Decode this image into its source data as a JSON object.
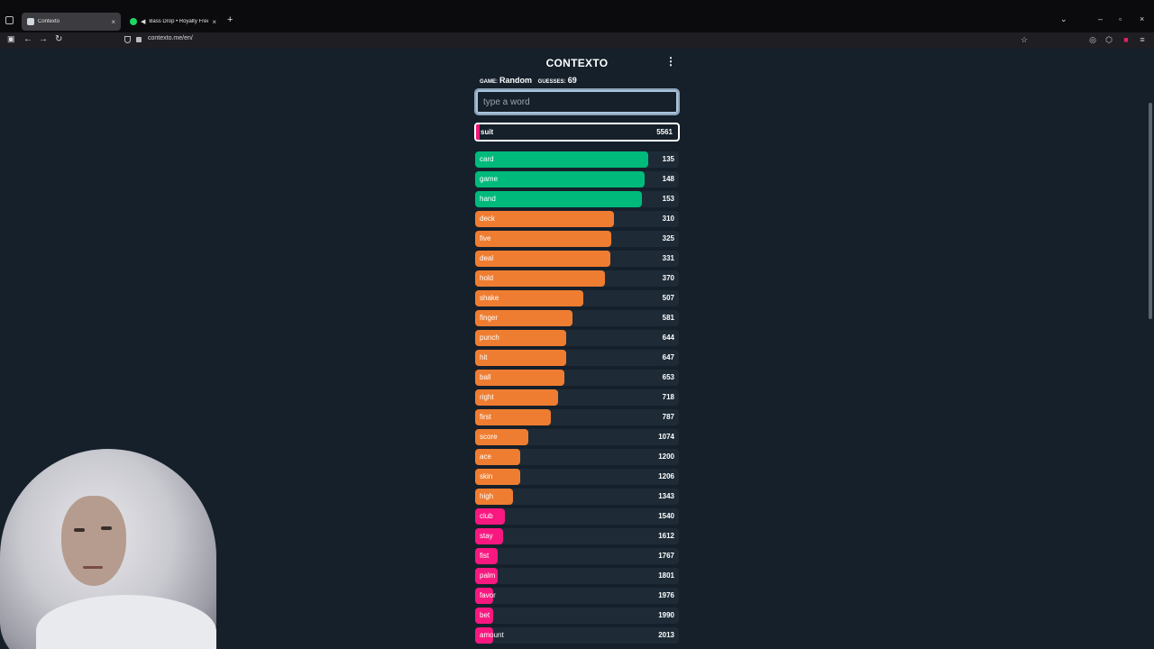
{
  "browser": {
    "tabs": [
      {
        "title": "Contexto",
        "active": true
      },
      {
        "title": "Bass Drop • Royalty Free M",
        "active": false
      }
    ],
    "url": "contexto.me/en/"
  },
  "app": {
    "title": "CONTEXTO",
    "game_label": "GAME:",
    "game_value": "Random",
    "guesses_label": "GUESSES:",
    "guesses_value": "69",
    "input_placeholder": "type a word"
  },
  "current_guess": {
    "word": "suit",
    "rank": "5561"
  },
  "colors": {
    "green": "#00ba7c",
    "orange": "#ef7d31",
    "pink": "#f91880"
  },
  "guesses": [
    {
      "word": "card",
      "rank": 135,
      "color": "green",
      "fill": 0.85
    },
    {
      "word": "game",
      "rank": 148,
      "color": "green",
      "fill": 0.83
    },
    {
      "word": "hand",
      "rank": 153,
      "color": "green",
      "fill": 0.82
    },
    {
      "word": "deck",
      "rank": 310,
      "color": "orange",
      "fill": 0.68
    },
    {
      "word": "five",
      "rank": 325,
      "color": "orange",
      "fill": 0.67
    },
    {
      "word": "deal",
      "rank": 331,
      "color": "orange",
      "fill": 0.665
    },
    {
      "word": "hold",
      "rank": 370,
      "color": "orange",
      "fill": 0.635
    },
    {
      "word": "shake",
      "rank": 507,
      "color": "orange",
      "fill": 0.53
    },
    {
      "word": "finger",
      "rank": 581,
      "color": "orange",
      "fill": 0.48
    },
    {
      "word": "punch",
      "rank": 644,
      "color": "orange",
      "fill": 0.445
    },
    {
      "word": "hit",
      "rank": 647,
      "color": "orange",
      "fill": 0.445
    },
    {
      "word": "ball",
      "rank": 653,
      "color": "orange",
      "fill": 0.44
    },
    {
      "word": "right",
      "rank": 718,
      "color": "orange",
      "fill": 0.405
    },
    {
      "word": "first",
      "rank": 787,
      "color": "orange",
      "fill": 0.37
    },
    {
      "word": "score",
      "rank": 1074,
      "color": "orange",
      "fill": 0.26
    },
    {
      "word": "ace",
      "rank": 1200,
      "color": "orange",
      "fill": 0.22
    },
    {
      "word": "skin",
      "rank": 1206,
      "color": "orange",
      "fill": 0.22
    },
    {
      "word": "high",
      "rank": 1343,
      "color": "orange",
      "fill": 0.185
    },
    {
      "word": "club",
      "rank": 1540,
      "color": "pink",
      "fill": 0.145
    },
    {
      "word": "stay",
      "rank": 1612,
      "color": "pink",
      "fill": 0.135
    },
    {
      "word": "fist",
      "rank": 1767,
      "color": "pink",
      "fill": 0.11
    },
    {
      "word": "palm",
      "rank": 1801,
      "color": "pink",
      "fill": 0.11
    },
    {
      "word": "favor",
      "rank": 1976,
      "color": "pink",
      "fill": 0.09
    },
    {
      "word": "bet",
      "rank": 1990,
      "color": "pink",
      "fill": 0.09
    },
    {
      "word": "amount",
      "rank": 2013,
      "color": "pink",
      "fill": 0.09
    }
  ],
  "current_fill": 0.01
}
